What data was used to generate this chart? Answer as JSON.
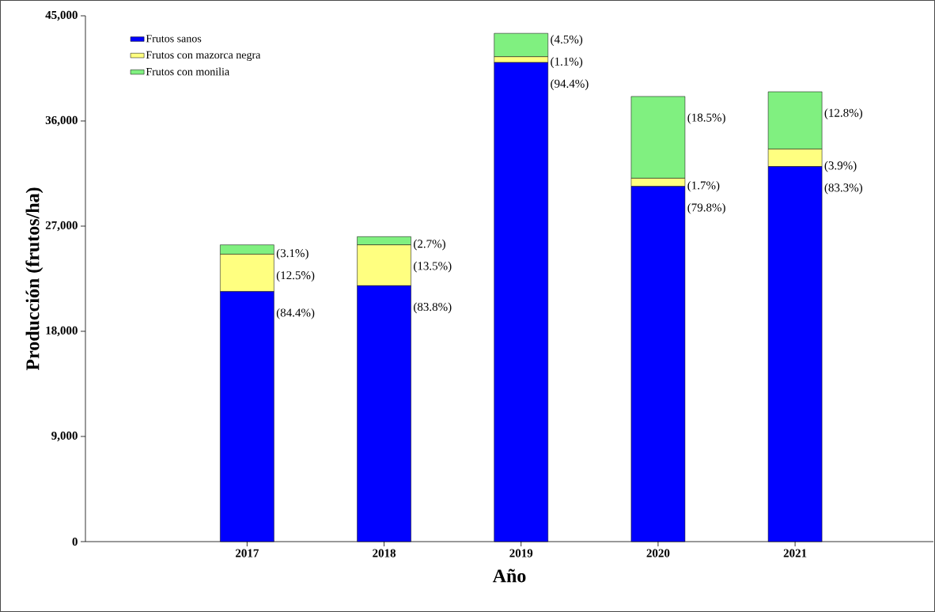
{
  "chart_data": {
    "type": "bar",
    "stacked": true,
    "xlabel": "Año",
    "ylabel": "Producción (frutos/ha)",
    "categories": [
      "2017",
      "2018",
      "2019",
      "2020",
      "2021"
    ],
    "series": [
      {
        "name": "Frutos sanos",
        "color": "#0000ff",
        "values": [
          21400,
          21900,
          41000,
          30400,
          32100
        ]
      },
      {
        "name": "Frutos con mazorca negra",
        "color": "#ffff80",
        "values": [
          3200,
          3500,
          500,
          700,
          1500
        ]
      },
      {
        "name": "Frutos con monilia",
        "color": "#80f080",
        "values": [
          800,
          700,
          2000,
          7000,
          4900
        ]
      }
    ],
    "annotations": [
      {
        "text": "(84.4%)",
        "x": "2017",
        "y": 21400
      },
      {
        "text": "(12.5%)",
        "x": "2017",
        "y": 24600
      },
      {
        "text": "(3.1%)",
        "x": "2017",
        "y": 25400
      },
      {
        "text": "(83.8%)",
        "x": "2018",
        "y": 21900
      },
      {
        "text": "(13.5%)",
        "x": "2018",
        "y": 25400
      },
      {
        "text": "(2.7%)",
        "x": "2018",
        "y": 26100
      },
      {
        "text": "(94.4%)",
        "x": "2019",
        "y": 41000
      },
      {
        "text": "(1.1%)",
        "x": "2019",
        "y": 41500
      },
      {
        "text": "(4.5%)",
        "x": "2019",
        "y": 43500
      },
      {
        "text": "(79.8%)",
        "x": "2020",
        "y": 30400
      },
      {
        "text": "(1.7%)",
        "x": "2020",
        "y": 31100
      },
      {
        "text": "(18.5%)",
        "x": "2020",
        "y": 38100
      },
      {
        "text": "(83.3%)",
        "x": "2021",
        "y": 32100
      },
      {
        "text": "(3.9%)",
        "x": "2021",
        "y": 33600
      },
      {
        "text": "(12.8%)",
        "x": "2021",
        "y": 38500
      }
    ],
    "ylim": [
      0,
      45000
    ],
    "yticks": [
      {
        "value": 0,
        "label": "0"
      },
      {
        "value": 9000,
        "label": "9,000"
      },
      {
        "value": 18000,
        "label": "18,000"
      },
      {
        "value": 27000,
        "label": "27,000"
      },
      {
        "value": 36000,
        "label": "36,000"
      },
      {
        "value": 45000,
        "label": "45,000"
      }
    ],
    "grid": false,
    "legend": "top left"
  }
}
